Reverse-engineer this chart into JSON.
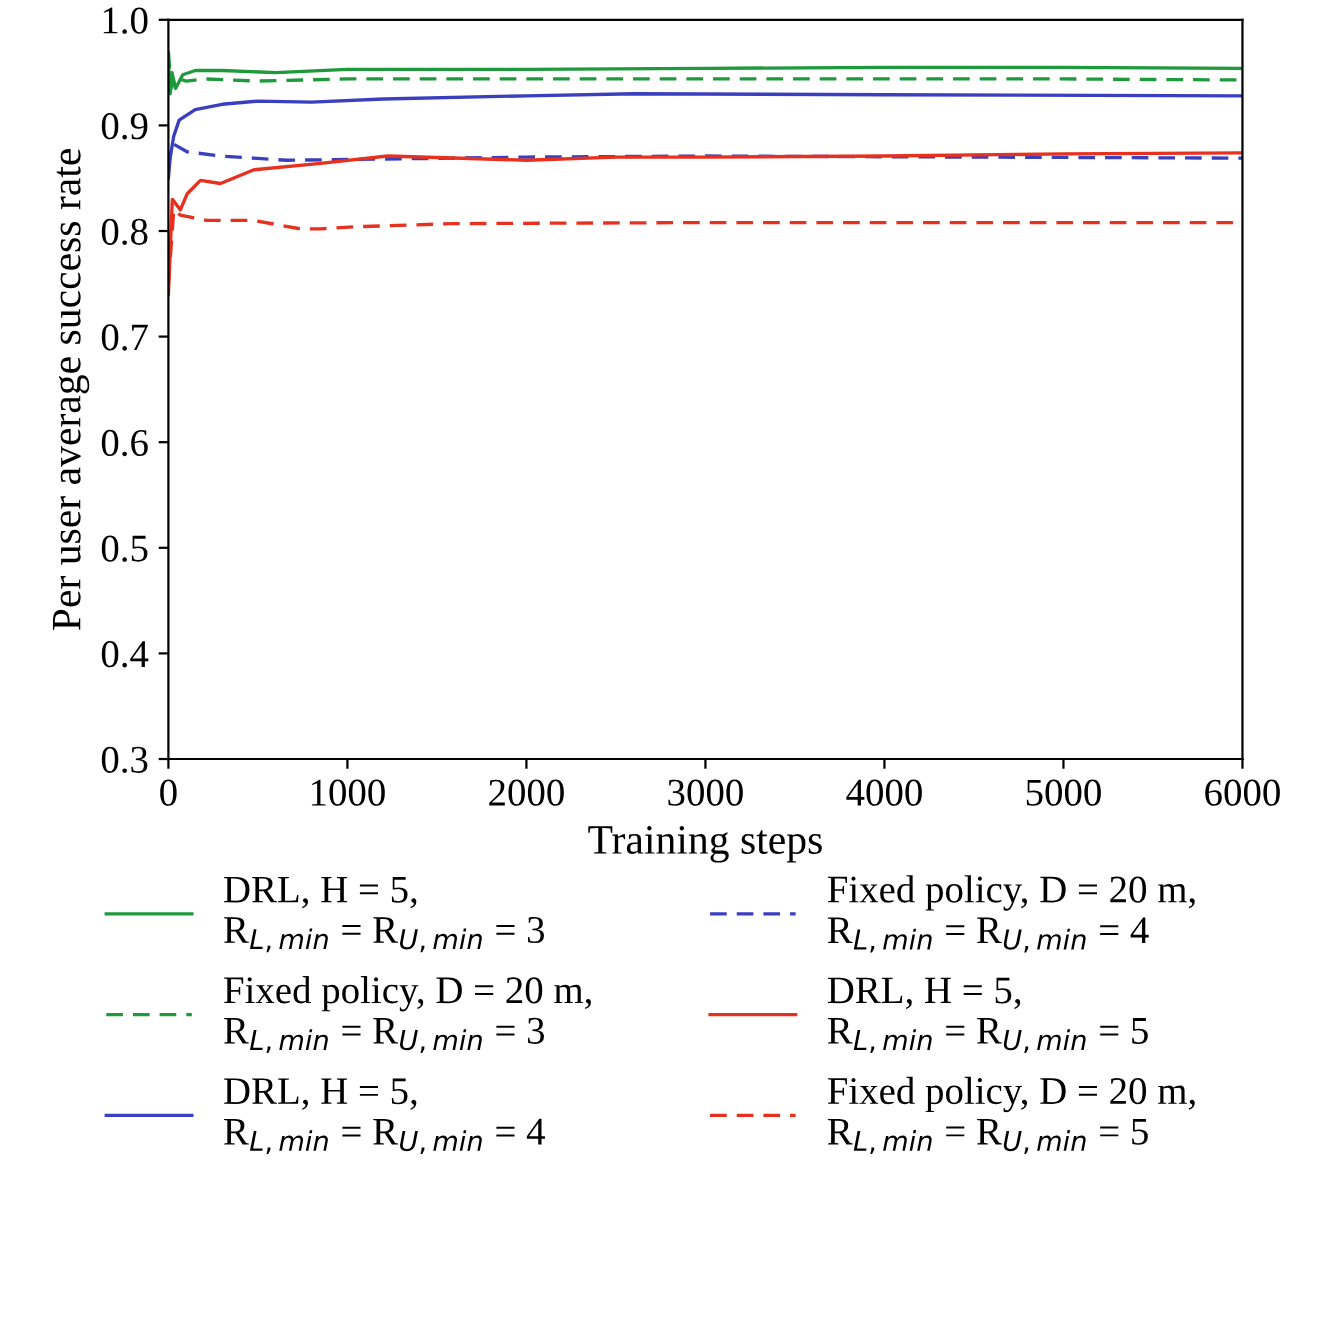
{
  "chart_data": {
    "type": "line",
    "xlabel": "Training steps",
    "ylabel": "Per user average success rate",
    "xlim": [
      0,
      6000
    ],
    "ylim": [
      0.3,
      1.0
    ],
    "xticks": [
      0,
      1000,
      2000,
      3000,
      4000,
      5000,
      6000
    ],
    "yticks": [
      0.3,
      0.4,
      0.5,
      0.6,
      0.7,
      0.8,
      0.9,
      {
        "value": 1.0,
        "label": "1.0"
      }
    ],
    "grid": false,
    "legend": "bottom",
    "marker": "none",
    "series": [
      {
        "name": "DRL, H = 5,\nR$_{L,min}$ = R$_{U,min}$ = 3",
        "color": "#1e9a3c",
        "line_style": "solid",
        "x": [
          0,
          10,
          20,
          40,
          80,
          150,
          300,
          600,
          1000,
          2000,
          3000,
          4000,
          5000,
          6000
        ],
        "values": [
          0.96,
          0.93,
          0.95,
          0.935,
          0.948,
          0.952,
          0.952,
          0.95,
          0.953,
          0.953,
          0.954,
          0.955,
          0.955,
          0.954
        ]
      },
      {
        "name": "Fixed policy, D = 20 m,\nR$_{L,min}$ = R$_{U,min}$ = 3",
        "color": "#1e9a3c",
        "line_style": "dashed",
        "x": [
          0,
          15,
          40,
          100,
          200,
          500,
          1000,
          2000,
          3000,
          4000,
          5000,
          6000
        ],
        "values": [
          0.97,
          0.935,
          0.945,
          0.942,
          0.944,
          0.942,
          0.944,
          0.944,
          0.944,
          0.944,
          0.944,
          0.943
        ]
      },
      {
        "name": "DRL, H = 5,\nR$_{L,min}$ = R$_{U,min}$ = 4",
        "color": "#3a3fbf",
        "line_style": "solid",
        "x": [
          0,
          10,
          30,
          60,
          150,
          300,
          500,
          800,
          1200,
          2000,
          2600,
          4000,
          6000
        ],
        "values": [
          0.85,
          0.87,
          0.89,
          0.905,
          0.915,
          0.92,
          0.923,
          0.922,
          0.925,
          0.928,
          0.93,
          0.929,
          0.928
        ]
      },
      {
        "name": "Fixed policy, D = 20 m,\nR$_{L,min}$ = R$_{U,min}$ = 4",
        "color": "#3a3fbf",
        "line_style": "dashed",
        "x": [
          0,
          22,
          104,
          291,
          659,
          1600,
          2000,
          3000,
          6000
        ],
        "values": [
          0.86,
          0.883,
          0.875,
          0.871,
          0.867,
          0.869,
          0.87,
          0.871,
          0.869
        ]
      },
      {
        "name": "DRL, H = 5,\nR$_{L,min}$ = R$_{U,min}$ = 5",
        "color": "#e8301f",
        "line_style": "solid",
        "x": [
          0,
          22,
          67,
          104,
          179,
          291,
          478,
          850,
          1224,
          2000,
          2500,
          3000,
          4000,
          5000,
          6000
        ],
        "values": [
          0.74,
          0.83,
          0.82,
          0.835,
          0.848,
          0.845,
          0.858,
          0.864,
          0.871,
          0.867,
          0.87,
          0.87,
          0.871,
          0.873,
          0.874
        ]
      },
      {
        "name": "Fixed policy, D = 20 m,\nR$_{L,min}$ = R$_{U,min}$ = 5",
        "color": "#e8301f",
        "line_style": "dashed",
        "x": [
          0,
          30,
          67,
          216,
          478,
          739,
          850,
          1037,
          1596,
          3000,
          4500,
          6000
        ],
        "values": [
          0.75,
          0.82,
          0.815,
          0.81,
          0.81,
          0.802,
          0.802,
          0.804,
          0.807,
          0.808,
          0.808,
          0.808
        ]
      }
    ]
  }
}
